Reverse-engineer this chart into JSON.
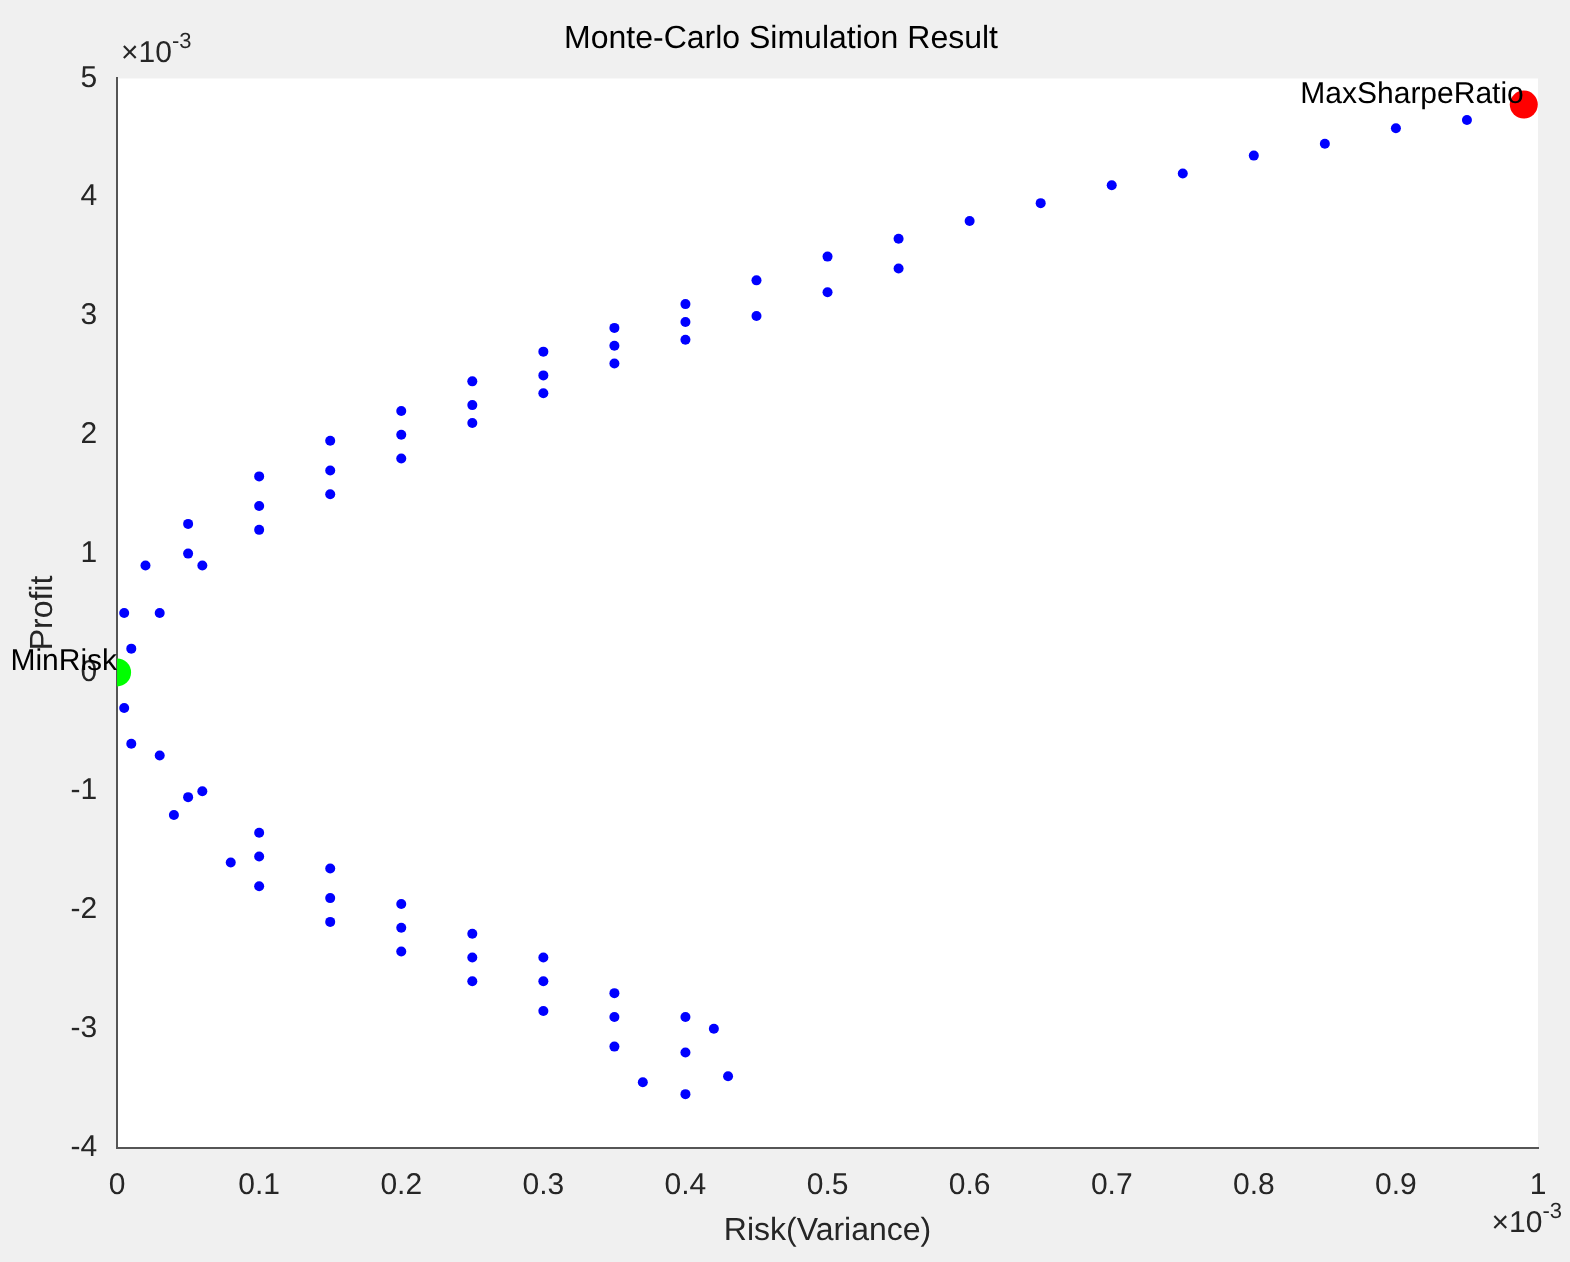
{
  "chart_data": {
    "type": "scatter",
    "title": "Monte-Carlo Simulation Result",
    "xlabel": "Risk(Variance)",
    "ylabel": "Profit",
    "annotations": [
      "×10$^{-3}$",
      "×10$^{-3}$"
    ],
    "xlim": [
      0,
      1
    ],
    "xticks": [
      0,
      0.1,
      0.2,
      0.3,
      0.4,
      0.5,
      0.6,
      0.7,
      0.8,
      0.9,
      1
    ],
    "ylim": [
      -4,
      5
    ],
    "yticks": [
      -4,
      -3,
      -2,
      -1,
      0,
      1,
      2,
      3,
      4,
      5
    ],
    "grid": false,
    "legend": false,
    "marker": "circle",
    "series": [
      {
        "color": "#0000ff",
        "x": [
          0.005,
          0.02,
          0.05,
          0.1,
          0.15,
          0.2,
          0.25,
          0.3,
          0.35,
          0.4,
          0.45,
          0.5,
          0.55,
          0.6,
          0.65,
          0.7,
          0.75,
          0.8,
          0.85,
          0.9,
          0.95,
          0.01,
          0.03,
          0.06,
          0.1,
          0.15,
          0.2,
          0.25,
          0.3,
          0.35,
          0.4,
          0.45,
          0.5,
          0.55,
          0.05,
          0.1,
          0.15,
          0.2,
          0.25,
          0.3,
          0.35,
          0.4,
          0.005,
          0.03,
          0.06,
          0.1,
          0.15,
          0.2,
          0.25,
          0.3,
          0.35,
          0.4,
          0.42,
          0.01,
          0.04,
          0.08,
          0.1,
          0.15,
          0.2,
          0.25,
          0.3,
          0.35,
          0.37,
          0.4,
          0.43,
          0.05,
          0.1,
          0.15,
          0.2,
          0.25,
          0.3,
          0.35,
          0.4
        ],
        "values": [
          0.5,
          0.9,
          1.25,
          1.65,
          1.95,
          2.2,
          2.45,
          2.7,
          2.9,
          3.1,
          3.3,
          3.5,
          3.65,
          3.8,
          3.95,
          4.1,
          4.2,
          4.35,
          4.45,
          4.58,
          4.65,
          0.2,
          0.5,
          0.9,
          1.2,
          1.5,
          1.8,
          2.1,
          2.35,
          2.6,
          2.8,
          3.0,
          3.2,
          3.4,
          1.0,
          1.4,
          1.7,
          2.0,
          2.25,
          2.5,
          2.75,
          2.95,
          -0.3,
          -0.7,
          -1.0,
          -1.35,
          -1.65,
          -1.95,
          -2.2,
          -2.4,
          -2.7,
          -2.9,
          -3.0,
          -0.6,
          -1.2,
          -1.6,
          -1.8,
          -2.1,
          -2.35,
          -2.6,
          -2.85,
          -3.15,
          -3.45,
          -3.55,
          -3.4,
          -1.05,
          -1.55,
          -1.9,
          -2.15,
          -2.4,
          -2.6,
          -2.9,
          -3.2
        ]
      },
      {
        "name": "MinRisk",
        "color": "#00ff00",
        "x": [
          0
        ],
        "values": [
          0
        ]
      },
      {
        "name": "MaxSharpeRatio",
        "color": "#ff0000",
        "x": [
          0.99
        ],
        "values": [
          4.78
        ]
      }
    ]
  }
}
